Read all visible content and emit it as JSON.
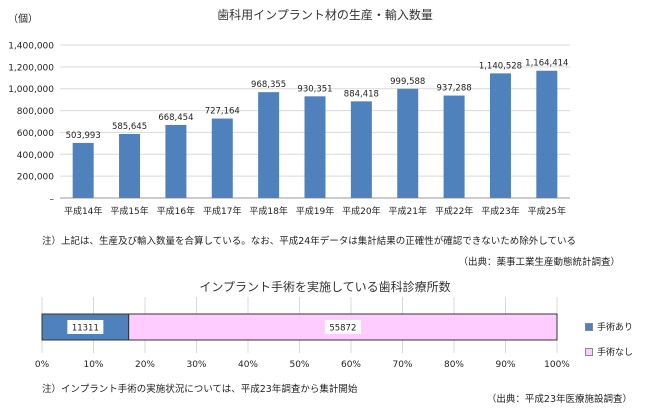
{
  "chart_data": [
    {
      "type": "bar",
      "title": "歯科用インプラント材の生産・輸入数量",
      "ylabel": "（個）",
      "categories": [
        "平成14年",
        "平成15年",
        "平成16年",
        "平成17年",
        "平成18年",
        "平成19年",
        "平成20年",
        "平成21年",
        "平成22年",
        "平成23年",
        "平成25年"
      ],
      "values": [
        503993,
        585645,
        668454,
        727164,
        968355,
        930351,
        884418,
        999588,
        937288,
        1140528,
        1164414
      ],
      "data_labels": [
        "503,993",
        "585,645",
        "668,454",
        "727,164",
        "968,355",
        "930,351",
        "884,418",
        "999,588",
        "937,288",
        "1,140,528",
        "1,164,414"
      ],
      "y_ticks": [
        0,
        200000,
        400000,
        600000,
        800000,
        1000000,
        1200000,
        1400000
      ],
      "y_tick_labels": [
        "–",
        "200,000",
        "400,000",
        "600,000",
        "800,000",
        "1,000,000",
        "1,200,000",
        "1,400,000"
      ],
      "ylim": [
        0,
        1400000
      ],
      "grid": true,
      "bar_color": "#4f81bd",
      "note": "注）上記は、生産及び輸入数量を合算している。なお、平成24年データは集計結果の正確性が確認できないため除外している",
      "source": "（出典：薬事工業生産動態統計調査）"
    },
    {
      "type": "bar",
      "orientation": "horizontal",
      "stacked": true,
      "percent": true,
      "title": "インプラント手術を実施している歯科診療所数",
      "series": [
        {
          "name": "手術あり",
          "value": 11311,
          "label": "11311",
          "color": "#4f81bd"
        },
        {
          "name": "手術なし",
          "value": 55872,
          "label": "55872",
          "color": "#ffccff"
        }
      ],
      "x_ticks": [
        0,
        10,
        20,
        30,
        40,
        50,
        60,
        70,
        80,
        90,
        100
      ],
      "x_tick_labels": [
        "0%",
        "10%",
        "20%",
        "30%",
        "40%",
        "50%",
        "60%",
        "70%",
        "80%",
        "90%",
        "100%"
      ],
      "xlim": [
        0,
        100
      ],
      "grid": true,
      "legend": "right",
      "note": "注）インプラント手術の実施状況については、平成23年調査から集計開始",
      "source": "（出典：平成23年医療施設調査）"
    }
  ]
}
